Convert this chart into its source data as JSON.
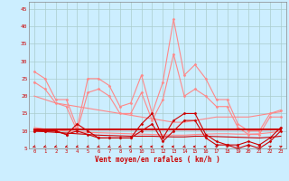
{
  "xlabel": "Vent moyen/en rafales ( km/h )",
  "background_color": "#cceeff",
  "grid_color": "#aacccc",
  "ylim": [
    5,
    47
  ],
  "yticks": [
    5,
    10,
    15,
    20,
    25,
    30,
    35,
    40,
    45
  ],
  "series": [
    {
      "name": "rafales_light",
      "color": "#ff8888",
      "lw": 0.8,
      "marker": "D",
      "ms": 1.5,
      "values": [
        27,
        25,
        19,
        19,
        11,
        25,
        25,
        23,
        17,
        18,
        26,
        15,
        24,
        42,
        26,
        29,
        25,
        19,
        19,
        12,
        10,
        10,
        15,
        16
      ]
    },
    {
      "name": "moyen_light",
      "color": "#ff8888",
      "lw": 0.8,
      "marker": "D",
      "ms": 1.5,
      "values": [
        24,
        22,
        18,
        17,
        10,
        21,
        22,
        20,
        15,
        15,
        21,
        13,
        19,
        32,
        20,
        22,
        20,
        17,
        17,
        11,
        9,
        9,
        14,
        14
      ]
    },
    {
      "name": "trend_light1",
      "color": "#ff8888",
      "lw": 0.8,
      "marker": null,
      "ms": 0,
      "values": [
        20,
        19,
        18,
        17.5,
        17,
        16.5,
        16,
        15.5,
        15,
        14.5,
        14,
        13.5,
        13,
        12.5,
        12.5,
        13,
        13.5,
        14,
        14,
        14,
        14,
        14.5,
        15,
        15.5
      ]
    },
    {
      "name": "trend_light2",
      "color": "#ff8888",
      "lw": 0.8,
      "marker": null,
      "ms": 0,
      "values": [
        11,
        10.5,
        10.2,
        10,
        9.8,
        9.6,
        9.5,
        9.4,
        9.3,
        9.2,
        9.1,
        9.0,
        8.9,
        8.8,
        8.8,
        9.0,
        9.1,
        9.2,
        9.2,
        9.1,
        9.1,
        9.2,
        9.5,
        10.0
      ]
    },
    {
      "name": "mean_line",
      "color": "#cc0000",
      "lw": 1.5,
      "marker": null,
      "ms": 0,
      "values": [
        10.5,
        10.5,
        10.5,
        10.5,
        10.5,
        10.5,
        10.5,
        10.5,
        10.5,
        10.5,
        10.5,
        10.5,
        10.5,
        10.5,
        10.5,
        10.5,
        10.5,
        10.5,
        10.5,
        10.5,
        10.5,
        10.5,
        10.5,
        10.5
      ]
    },
    {
      "name": "rafales_dark",
      "color": "#cc0000",
      "lw": 0.8,
      "marker": "D",
      "ms": 1.5,
      "values": [
        10,
        10,
        10,
        9,
        12,
        10,
        8,
        8,
        8,
        8,
        12,
        15,
        8,
        13,
        15,
        15,
        9,
        7,
        6,
        6,
        7,
        6,
        8,
        11
      ]
    },
    {
      "name": "moyen_dark",
      "color": "#cc0000",
      "lw": 0.8,
      "marker": "D",
      "ms": 1.5,
      "values": [
        10,
        10,
        10,
        9,
        10,
        9,
        8,
        8,
        8,
        8,
        10,
        12,
        7,
        10,
        13,
        13,
        8,
        6,
        6,
        5,
        6,
        5,
        7,
        10
      ]
    },
    {
      "name": "trend_dark1",
      "color": "#cc0000",
      "lw": 0.8,
      "marker": null,
      "ms": 0,
      "values": [
        10,
        9.8,
        9.6,
        9.4,
        9.2,
        9.0,
        8.8,
        8.7,
        8.6,
        8.5,
        8.5,
        8.5,
        8.4,
        8.3,
        8.3,
        8.5,
        8.5,
        8.4,
        8.3,
        8.2,
        8.1,
        8.0,
        8.2,
        8.5
      ]
    }
  ],
  "wind_arrows": [
    {
      "x": 0,
      "deg": 225
    },
    {
      "x": 1,
      "deg": 225
    },
    {
      "x": 2,
      "deg": 225
    },
    {
      "x": 3,
      "deg": 225
    },
    {
      "x": 4,
      "deg": 225
    },
    {
      "x": 5,
      "deg": 225
    },
    {
      "x": 6,
      "deg": 225
    },
    {
      "x": 7,
      "deg": 225
    },
    {
      "x": 8,
      "deg": 225
    },
    {
      "x": 9,
      "deg": 270
    },
    {
      "x": 10,
      "deg": 270
    },
    {
      "x": 11,
      "deg": 270
    },
    {
      "x": 12,
      "deg": 270
    },
    {
      "x": 13,
      "deg": 270
    },
    {
      "x": 14,
      "deg": 225
    },
    {
      "x": 15,
      "deg": 270
    },
    {
      "x": 16,
      "deg": 270
    },
    {
      "x": 17,
      "deg": 45
    },
    {
      "x": 18,
      "deg": 45
    },
    {
      "x": 19,
      "deg": 45
    },
    {
      "x": 20,
      "deg": 45
    },
    {
      "x": 21,
      "deg": 45
    },
    {
      "x": 22,
      "deg": 45
    },
    {
      "x": 23,
      "deg": 45
    }
  ]
}
